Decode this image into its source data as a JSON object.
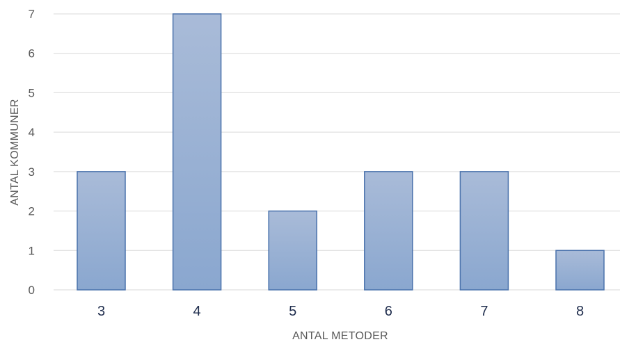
{
  "chart_data": {
    "type": "bar",
    "categories": [
      "3",
      "4",
      "5",
      "6",
      "7",
      "8"
    ],
    "values": [
      3,
      7,
      2,
      3,
      3,
      1
    ],
    "title": "",
    "xlabel": "ANTAL METODER",
    "ylabel": "ANTAL KOMMUNER",
    "ylim": [
      0,
      7
    ],
    "yticks": [
      "0",
      "1",
      "2",
      "3",
      "4",
      "5",
      "6",
      "7"
    ],
    "grid": true,
    "legend": "none",
    "colors": {
      "bar_fill_top": "#a9bbd8",
      "bar_fill_bottom": "#8aa7cf",
      "bar_stroke": "#4a72ac",
      "grid": "#d9d9d9"
    }
  }
}
